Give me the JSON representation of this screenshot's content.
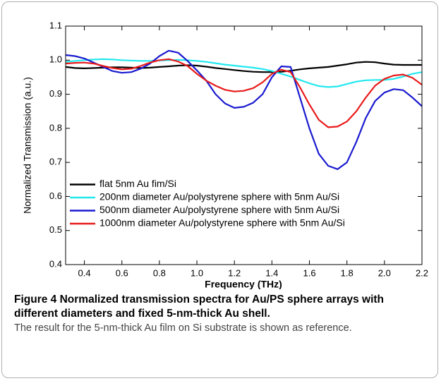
{
  "chart_data": {
    "type": "line",
    "xlabel": "Frequency (THz)",
    "ylabel": "Normalized Transmission (a.u.)",
    "xlim": [
      0.3,
      2.2
    ],
    "xticks": [
      0.4,
      0.6,
      0.8,
      {
        "value": 1,
        "label": "1.0"
      },
      1.2,
      1.4,
      1.6,
      1.8,
      {
        "value": 2,
        "label": "2.0"
      },
      2.2
    ],
    "ylim": [
      0.4,
      1.1
    ],
    "yticks": [
      0.4,
      0.5,
      0.6,
      0.7,
      0.8,
      0.9,
      {
        "value": 1,
        "label": "1.0"
      },
      1.1
    ],
    "legend": "lower left",
    "x": [
      0.3,
      0.35,
      0.4,
      0.45,
      0.5,
      0.55,
      0.6,
      0.65,
      0.7,
      0.75,
      0.8,
      0.85,
      0.9,
      0.95,
      1.0,
      1.05,
      1.1,
      1.15,
      1.2,
      1.25,
      1.3,
      1.35,
      1.4,
      1.45,
      1.5,
      1.55,
      1.6,
      1.65,
      1.7,
      1.75,
      1.8,
      1.85,
      1.9,
      1.95,
      2.0,
      2.05,
      2.1,
      2.15,
      2.2
    ],
    "series": [
      {
        "name": "flat 5nm Au fim/Si",
        "color": "#000000",
        "values": [
          0.98,
          0.977,
          0.976,
          0.977,
          0.978,
          0.979,
          0.979,
          0.978,
          0.977,
          0.978,
          0.98,
          0.982,
          0.984,
          0.985,
          0.984,
          0.981,
          0.977,
          0.974,
          0.971,
          0.968,
          0.966,
          0.965,
          0.965,
          0.966,
          0.969,
          0.973,
          0.976,
          0.978,
          0.98,
          0.984,
          0.988,
          0.993,
          0.995,
          0.994,
          0.99,
          0.987,
          0.986,
          0.986,
          0.986
        ]
      },
      {
        "name": "200nm diameter Au/polystyrene  sphere with 5nm Au/Si",
        "color": "#22e8ee",
        "values": [
          0.995,
          0.998,
          1.0,
          1.002,
          1.003,
          1.002,
          1.0,
          0.999,
          0.998,
          0.998,
          0.999,
          1.0,
          1.001,
          1.0,
          0.998,
          0.995,
          0.991,
          0.987,
          0.984,
          0.981,
          0.978,
          0.974,
          0.968,
          0.96,
          0.952,
          0.942,
          0.932,
          0.924,
          0.921,
          0.923,
          0.93,
          0.937,
          0.941,
          0.942,
          0.942,
          0.945,
          0.952,
          0.96,
          0.965
        ]
      },
      {
        "name": "500nm diameter Au/polystyrene  sphere with 5nm Au/Si",
        "color": "#1a1ad0",
        "values": [
          1.015,
          1.012,
          1.005,
          0.993,
          0.98,
          0.968,
          0.963,
          0.965,
          0.975,
          0.99,
          1.012,
          1.028,
          1.022,
          0.998,
          0.97,
          0.94,
          0.9,
          0.873,
          0.86,
          0.863,
          0.875,
          0.9,
          0.95,
          0.982,
          0.98,
          0.89,
          0.8,
          0.725,
          0.69,
          0.68,
          0.7,
          0.76,
          0.83,
          0.88,
          0.905,
          0.915,
          0.912,
          0.89,
          0.865
        ]
      },
      {
        "name": "1000nm diameter Au/polystyrene  sphere with 5nm Au/Si",
        "color": "#e81a1a",
        "values": [
          0.99,
          0.992,
          0.993,
          0.99,
          0.983,
          0.977,
          0.973,
          0.975,
          0.983,
          0.993,
          1.0,
          1.003,
          0.996,
          0.983,
          0.96,
          0.94,
          0.925,
          0.913,
          0.908,
          0.91,
          0.918,
          0.935,
          0.96,
          0.972,
          0.965,
          0.92,
          0.87,
          0.825,
          0.803,
          0.805,
          0.82,
          0.85,
          0.89,
          0.925,
          0.945,
          0.955,
          0.958,
          0.948,
          0.928
        ]
      }
    ]
  },
  "caption": {
    "title": "Figure 4 Normalized transmission spectra for Au/PS sphere arrays with different diameters and fixed 5-nm-thick Au shell.",
    "text": "The result for the 5-nm-thick Au film on Si substrate is shown as reference."
  }
}
